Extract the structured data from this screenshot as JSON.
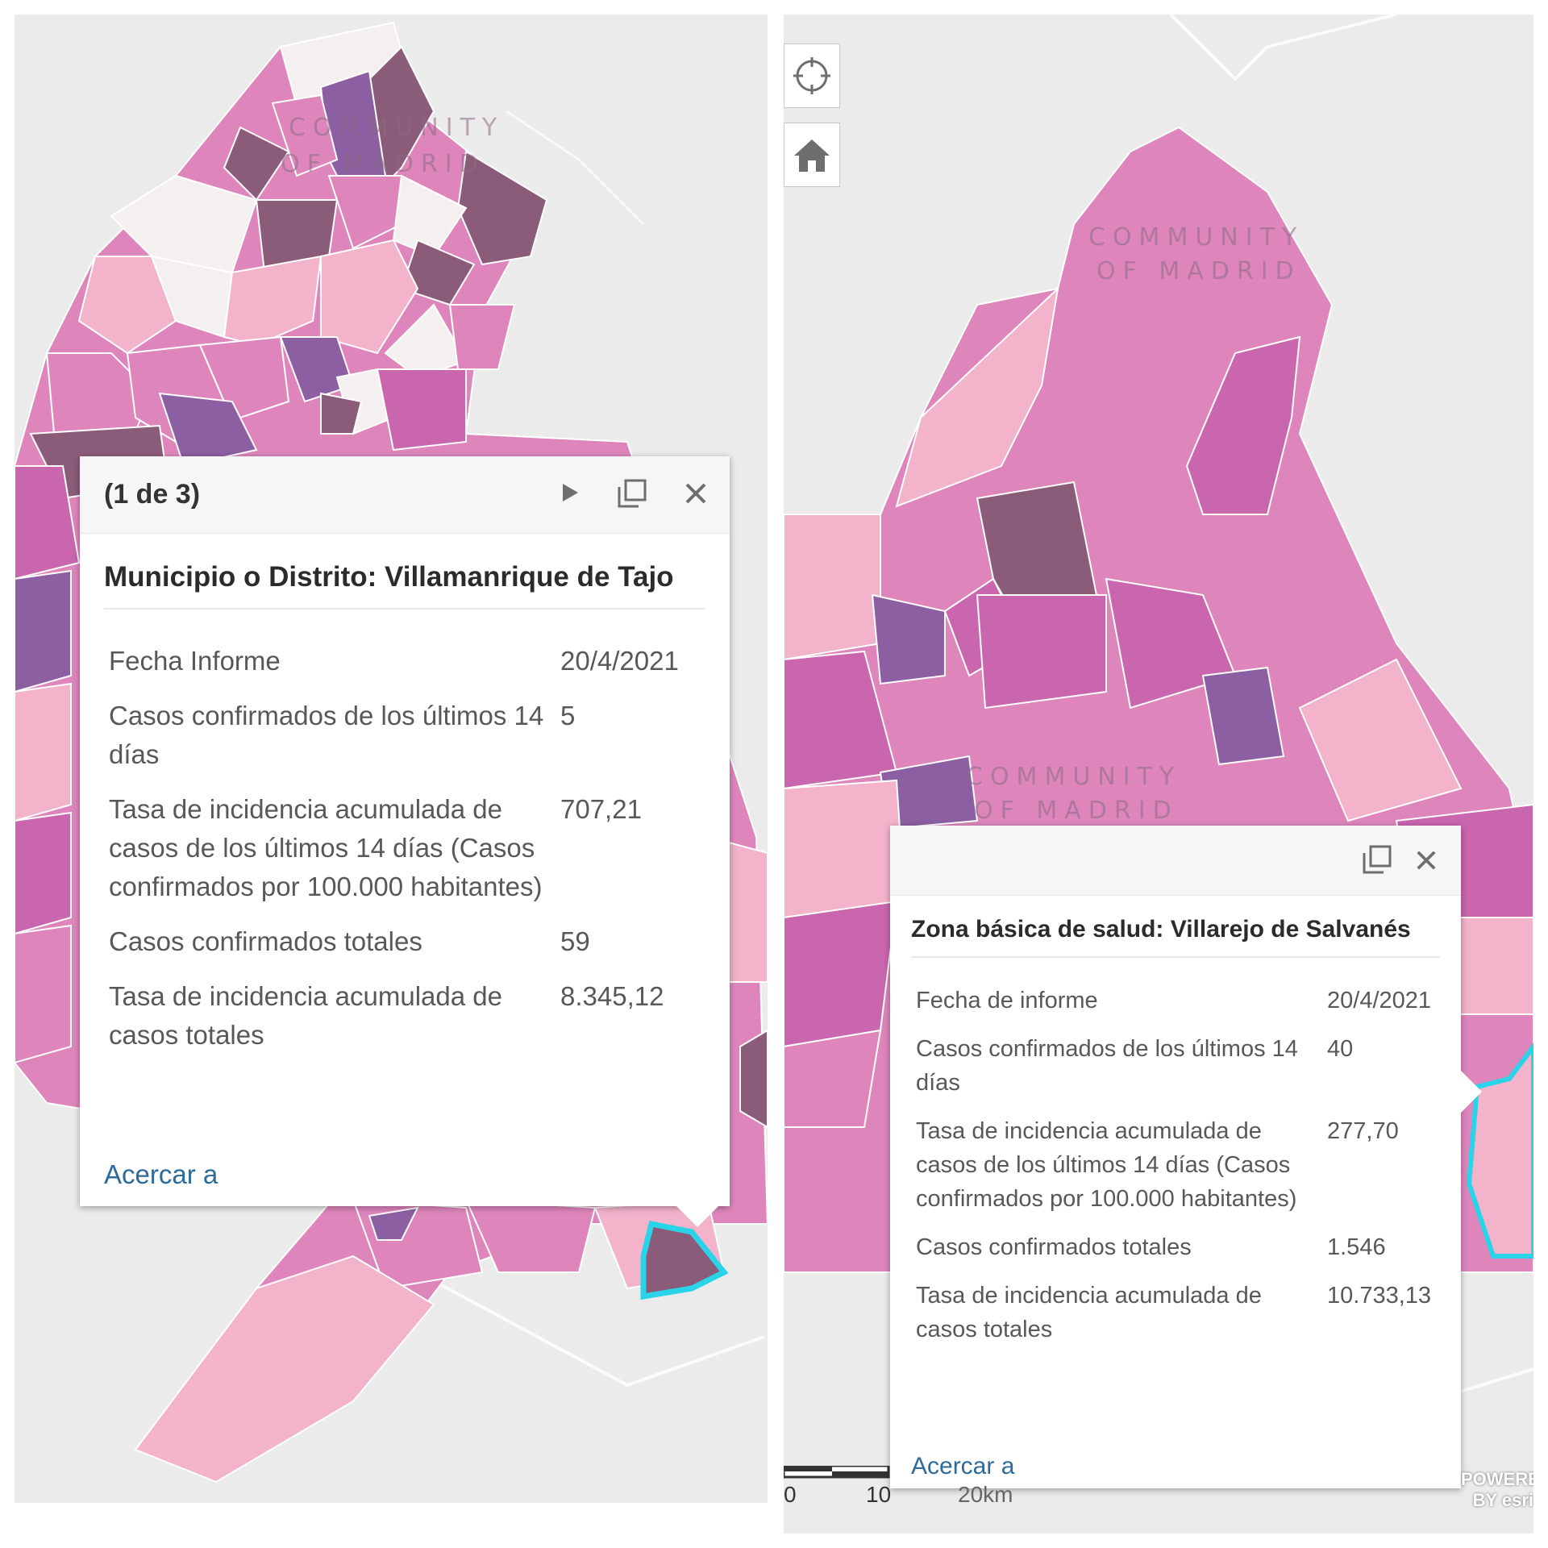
{
  "left_panel": {
    "map_label_line1": "COMMUNITY",
    "map_label_line2": "OF MADRID",
    "popup": {
      "pager": "(1 de 3)",
      "next_icon": "play-triangle-icon",
      "maximize_icon": "maximize-icon",
      "close_icon": "close-x-icon",
      "title": "Municipio o Distrito: Villamanrique de Tajo",
      "rows": [
        {
          "label": "Fecha Informe",
          "value": "20/4/2021"
        },
        {
          "label": "Casos confirmados de los últimos 14 días",
          "value": "5"
        },
        {
          "label": "Tasa de incidencia acumulada de casos de los últimos 14 días (Casos confirmados por 100.000 habitantes)",
          "value": "707,21"
        },
        {
          "label": "Casos confirmados totales",
          "value": "59"
        },
        {
          "label": "Tasa de incidencia acumulada de casos totales",
          "value": "8.345,12"
        }
      ],
      "zoom_link": "Acercar a"
    }
  },
  "right_panel": {
    "map_label_line1": "COMMUNITY",
    "map_label_line2": "OF MADRID",
    "map_label2_line1": "COMMUNITY",
    "map_label2_line2": "OF MADRID",
    "locate_icon": "crosshair-locate-icon",
    "home_icon": "home-icon",
    "popup": {
      "maximize_icon": "maximize-icon",
      "close_icon": "close-x-icon",
      "title": "Zona básica de salud: Villarejo de Salvanés",
      "rows": [
        {
          "label": "Fecha de informe",
          "value": "20/4/2021"
        },
        {
          "label": "Casos confirmados de los últimos 14 días",
          "value": "40"
        },
        {
          "label": "Tasa de incidencia acumulada de casos de los últimos 14 días (Casos confirmados por 100.000 habitantes)",
          "value": "277,70"
        },
        {
          "label": "Casos confirmados totales",
          "value": "1.546"
        },
        {
          "label": "Tasa de incidencia acumulada de casos totales",
          "value": "10.733,13"
        }
      ],
      "zoom_link": "Acercar a"
    },
    "scale": {
      "label_0": "0",
      "label_10": "10",
      "label_20": "20km"
    },
    "attribution": "POWERED BY esri"
  },
  "colors": {
    "map_background": "#ebebeb",
    "choropleth_light": "#f2b3cb",
    "choropleth_mid": "#de86bc",
    "choropleth_strong": "#c966ae",
    "choropleth_purple": "#8c5fa2",
    "choropleth_dark": "#8a5c79",
    "choropleth_white": "#f4f0f0",
    "selection_outline": "#29d3e8",
    "link_blue": "#2d6b9a"
  }
}
